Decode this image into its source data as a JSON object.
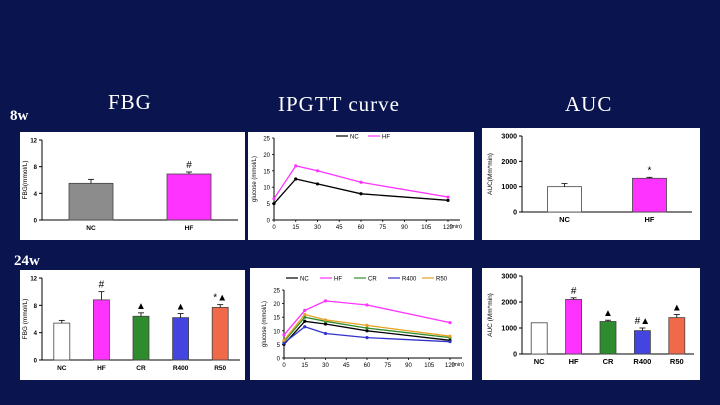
{
  "headers": {
    "fbg": "FBG",
    "ipgtt": "IPGTT curve",
    "auc": "AUC"
  },
  "row_labels": {
    "w8": "8w",
    "w24": "24w"
  },
  "colors": {
    "background": "#0a1550",
    "NC": "#8c8c8c",
    "HF": "#ff33ff",
    "CR": "#2e8b2e",
    "R400": "#4444e0",
    "R50": "#f06a4a"
  },
  "chart_data": [
    {
      "id": "fbg8",
      "type": "bar",
      "categories": [
        "NC",
        "HF"
      ],
      "values": [
        5.5,
        6.9
      ],
      "errors": [
        0.6,
        0.3
      ],
      "annotations": [
        "",
        "#"
      ],
      "ylabel": "FBG(mmol/L)",
      "yticks": [
        0,
        4,
        8,
        12
      ],
      "ylim": [
        0,
        12
      ],
      "colors": [
        "#8c8c8c",
        "#ff33ff"
      ]
    },
    {
      "id": "ipgtt8",
      "type": "line",
      "x": [
        0,
        15,
        30,
        60,
        120
      ],
      "xticks": [
        0,
        15,
        30,
        45,
        60,
        75,
        90,
        105,
        120
      ],
      "xunit": "(min)",
      "ylabel": "glucose (mmol/L)",
      "yticks": [
        0,
        5,
        10,
        15,
        20,
        25
      ],
      "ylim": [
        0,
        25
      ],
      "series": [
        {
          "name": "NC",
          "values": [
            5.0,
            12.5,
            11.0,
            8.0,
            6.0
          ],
          "color": "#000000"
        },
        {
          "name": "HF",
          "values": [
            6.5,
            16.5,
            15.0,
            11.5,
            7.0
          ],
          "color": "#ff33ff"
        }
      ]
    },
    {
      "id": "auc8",
      "type": "bar",
      "categories": [
        "NC",
        "HF"
      ],
      "values": [
        1000,
        1330
      ],
      "errors": [
        120,
        40
      ],
      "annotations": [
        "",
        "*"
      ],
      "ylabel": "AUC(Mm*min)",
      "yticks": [
        0,
        1000,
        2000,
        3000
      ],
      "ylim": [
        0,
        3000
      ],
      "colors": [
        "#ffffff",
        "#ff33ff"
      ]
    },
    {
      "id": "fbg24",
      "type": "bar",
      "categories": [
        "NC",
        "HF",
        "CR",
        "R400",
        "R50"
      ],
      "values": [
        5.4,
        8.8,
        6.4,
        6.2,
        7.7
      ],
      "errors": [
        0.4,
        1.2,
        0.5,
        0.6,
        0.4
      ],
      "annotations": [
        "",
        "#",
        "▲",
        "▲",
        "*▲"
      ],
      "ylabel": "FBG (mmol/L)",
      "yticks": [
        0,
        4,
        8,
        12
      ],
      "ylim": [
        0,
        12
      ],
      "colors": [
        "#ffffff",
        "#ff33ff",
        "#2e8b2e",
        "#4444e0",
        "#f06a4a"
      ]
    },
    {
      "id": "ipgtt24",
      "type": "line",
      "x": [
        0,
        15,
        30,
        60,
        120
      ],
      "xticks": [
        0,
        15,
        30,
        45,
        60,
        75,
        90,
        105,
        120
      ],
      "xunit": "(min)",
      "ylabel": "glucose (mmol/L)",
      "yticks": [
        0,
        5,
        10,
        15,
        20,
        25
      ],
      "ylim": [
        0,
        25
      ],
      "series": [
        {
          "name": "NC",
          "values": [
            5.0,
            13.5,
            12.5,
            10.0,
            6.5
          ],
          "color": "#000000"
        },
        {
          "name": "HF",
          "values": [
            8.5,
            17.5,
            21.0,
            19.5,
            13.0
          ],
          "color": "#ff33ff"
        },
        {
          "name": "CR",
          "values": [
            6.0,
            15.0,
            13.5,
            11.0,
            7.5
          ],
          "color": "#2e8b2e"
        },
        {
          "name": "R400",
          "values": [
            5.5,
            11.5,
            9.0,
            7.5,
            6.0
          ],
          "color": "#3333cc"
        },
        {
          "name": "R50",
          "values": [
            6.5,
            16.0,
            14.0,
            12.0,
            8.0
          ],
          "color": "#e8a020"
        }
      ]
    },
    {
      "id": "auc24",
      "type": "bar",
      "categories": [
        "NC",
        "HF",
        "CR",
        "R400",
        "R50"
      ],
      "values": [
        1200,
        2100,
        1250,
        900,
        1400
      ],
      "errors": [
        0,
        60,
        50,
        100,
        120
      ],
      "annotations": [
        "",
        "#",
        "▲",
        "#▲",
        "▲"
      ],
      "ylabel": "AUC (Mm*min)",
      "yticks": [
        0,
        1000,
        2000,
        3000
      ],
      "ylim": [
        0,
        3000
      ],
      "colors": [
        "#ffffff",
        "#ff33ff",
        "#2e8b2e",
        "#4444e0",
        "#f06a4a"
      ]
    }
  ]
}
